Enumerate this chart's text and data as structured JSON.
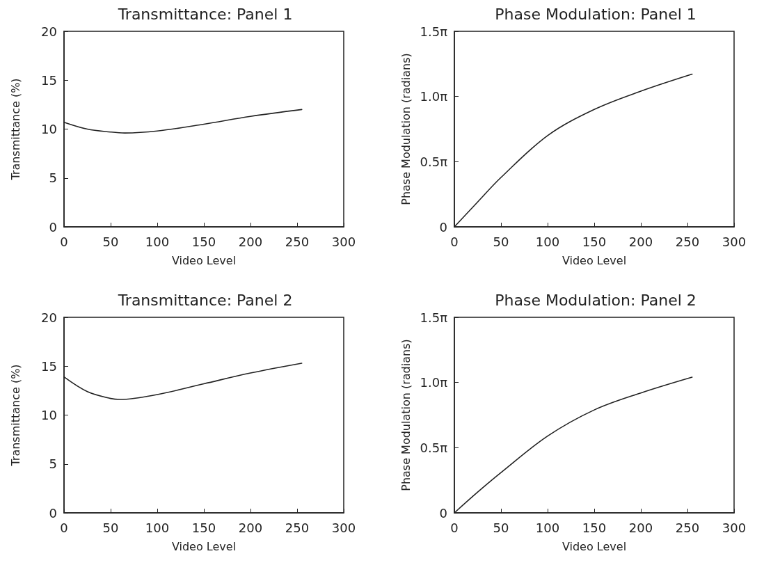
{
  "chart_data": [
    {
      "type": "line",
      "title": "Transmittance: Panel 1",
      "xlabel": "Video Level",
      "ylabel": "Transmittance (%)",
      "xlim": [
        0,
        300
      ],
      "xticks": [
        0,
        50,
        100,
        150,
        200,
        250,
        300
      ],
      "ylim": [
        0,
        20
      ],
      "yticks": [
        0,
        5,
        10,
        15,
        20
      ],
      "marker": "none",
      "line_style": "solid",
      "series": [
        {
          "color": "#222222",
          "x": [
            0,
            25,
            50,
            65,
            100,
            150,
            200,
            255
          ],
          "values": [
            10.7,
            10.0,
            9.7,
            9.6,
            9.8,
            10.5,
            11.3,
            12.0
          ]
        }
      ]
    },
    {
      "type": "line",
      "title": "Phase Modulation: Panel 1",
      "xlabel": "Video Level",
      "ylabel": "Phase Modulation (radians)",
      "xlim": [
        0,
        300
      ],
      "xticks": [
        0,
        50,
        100,
        150,
        200,
        250,
        300
      ],
      "ylim": [
        0,
        4.712
      ],
      "yticks": [
        0,
        {
          "value": 1.571,
          "label": "0.5π"
        },
        {
          "value": 3.142,
          "label": "1.0π"
        },
        {
          "value": 4.712,
          "label": "1.5π"
        }
      ],
      "marker": "none",
      "line_style": "solid",
      "series": [
        {
          "color": "#222222",
          "x": [
            0,
            25,
            50,
            100,
            150,
            200,
            255
          ],
          "values": [
            0,
            0.6,
            1.19,
            2.2,
            2.83,
            3.27,
            3.68
          ]
        }
      ]
    },
    {
      "type": "line",
      "title": "Transmittance: Panel 2",
      "xlabel": "Video Level",
      "ylabel": "Transmittance (%)",
      "xlim": [
        0,
        300
      ],
      "xticks": [
        0,
        50,
        100,
        150,
        200,
        250,
        300
      ],
      "ylim": [
        0,
        20
      ],
      "yticks": [
        0,
        5,
        10,
        15,
        20
      ],
      "marker": "none",
      "line_style": "solid",
      "series": [
        {
          "color": "#222222",
          "x": [
            0,
            25,
            50,
            60,
            100,
            150,
            200,
            255
          ],
          "values": [
            13.9,
            12.4,
            11.7,
            11.6,
            12.1,
            13.2,
            14.3,
            15.3
          ]
        }
      ]
    },
    {
      "type": "line",
      "title": "Phase Modulation: Panel 2",
      "xlabel": "Video Level",
      "ylabel": "Phase Modulation (radians)",
      "xlim": [
        0,
        300
      ],
      "xticks": [
        0,
        50,
        100,
        150,
        200,
        250,
        300
      ],
      "ylim": [
        0,
        4.712
      ],
      "yticks": [
        0,
        {
          "value": 1.571,
          "label": "0.5π"
        },
        {
          "value": 3.142,
          "label": "1.0π"
        },
        {
          "value": 4.712,
          "label": "1.5π"
        }
      ],
      "marker": "none",
      "line_style": "solid",
      "series": [
        {
          "color": "#222222",
          "x": [
            0,
            25,
            50,
            100,
            150,
            200,
            255
          ],
          "values": [
            0,
            0.5,
            0.97,
            1.85,
            2.48,
            2.89,
            3.27
          ]
        }
      ]
    }
  ]
}
